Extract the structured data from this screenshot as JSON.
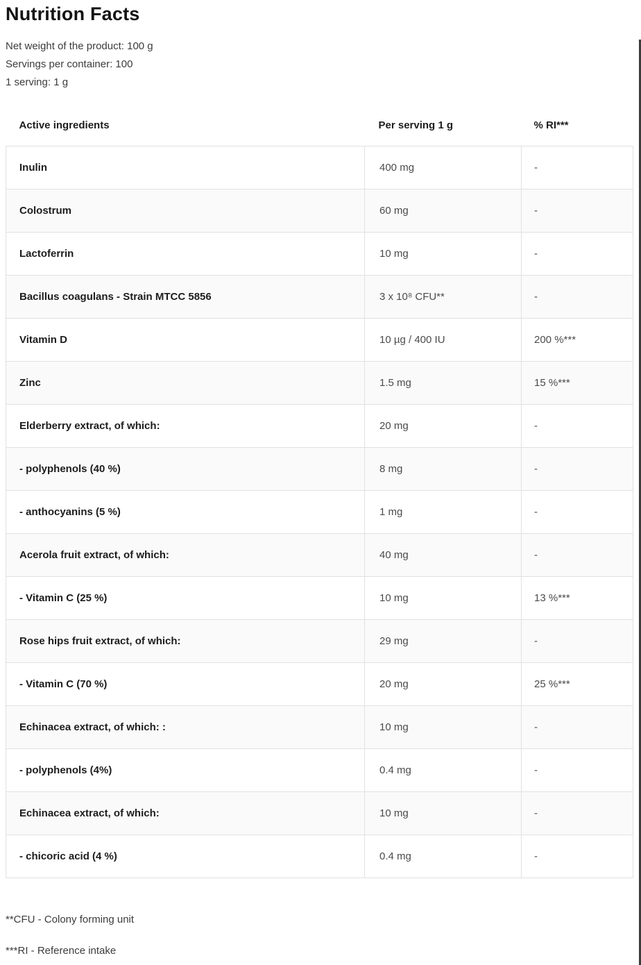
{
  "page": {
    "title": "Nutrition Facts",
    "meta_lines": [
      "Net weight of the product: 100 g",
      "Servings per container: 100",
      "1 serving: 1 g"
    ]
  },
  "table": {
    "headers": [
      "Active ingredients",
      "Per serving 1 g",
      "% RI***"
    ],
    "rows": [
      {
        "name": "Inulin",
        "per_serving": "400 mg",
        "ri": "-"
      },
      {
        "name": "Colostrum",
        "per_serving": "60 mg",
        "ri": "-"
      },
      {
        "name": "Lactoferrin",
        "per_serving": "10 mg",
        "ri": "-"
      },
      {
        "name": "Bacillus coagulans - Strain MTCC 5856",
        "per_serving": "3 x 10⁸ CFU**",
        "ri": "-"
      },
      {
        "name": "Vitamin D",
        "per_serving": "10 µg / 400 IU",
        "ri": "200 %***"
      },
      {
        "name": "Zinc",
        "per_serving": "1.5 mg",
        "ri": "15 %***"
      },
      {
        "name": "Elderberry extract, of which:",
        "per_serving": "20 mg",
        "ri": "-"
      },
      {
        "name": "- polyphenols (40 %)",
        "per_serving": "8 mg",
        "ri": "-"
      },
      {
        "name": "- anthocyanins (5 %)",
        "per_serving": "1 mg",
        "ri": "-"
      },
      {
        "name": "Acerola fruit extract, of which:",
        "per_serving": "40 mg",
        "ri": "-"
      },
      {
        "name": "- Vitamin C (25 %)",
        "per_serving": "10 mg",
        "ri": "13 %***"
      },
      {
        "name": "Rose hips fruit extract, of which:",
        "per_serving": "29 mg",
        "ri": "-"
      },
      {
        "name": "- Vitamin C (70 %)",
        "per_serving": "20 mg",
        "ri": "25 %***"
      },
      {
        "name": "Echinacea extract, of which: :",
        "per_serving": "10 mg",
        "ri": "-"
      },
      {
        "name": "- polyphenols (4%)",
        "per_serving": "0.4 mg",
        "ri": "-"
      },
      {
        "name": "Echinacea extract, of which:",
        "per_serving": "10 mg",
        "ri": "-"
      },
      {
        "name": "- chicoric acid (4 %)",
        "per_serving": "0.4 mg",
        "ri": "-"
      }
    ]
  },
  "footnotes": [
    "**CFU - Colony forming unit",
    "***RI - Reference intake"
  ],
  "colors": {
    "row_stripe": "#fafafa",
    "border": "#e1e1e1",
    "text_primary": "#1d1d1d",
    "text_secondary": "#4b4b4b"
  }
}
